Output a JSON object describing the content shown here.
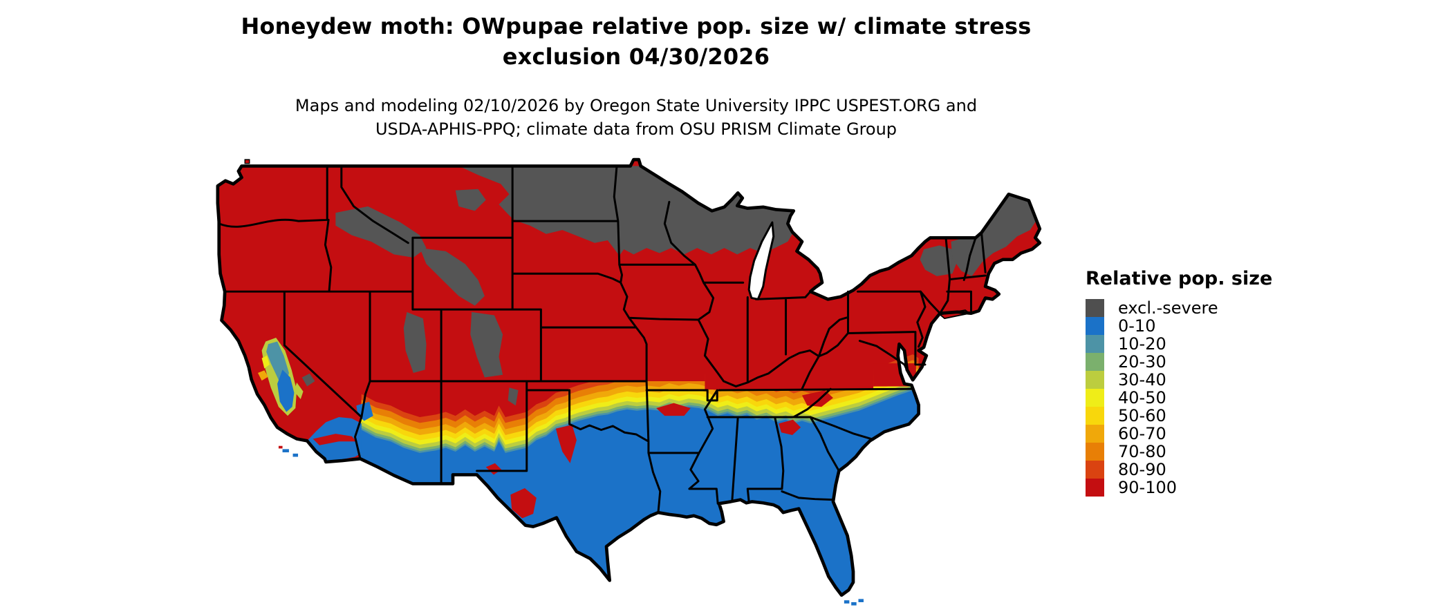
{
  "header": {
    "title_line1": "Honeydew moth: OWpupae relative pop. size w/ climate stress",
    "title_line2": "exclusion 04/30/2026",
    "subtitle_line1": "Maps and modeling 02/10/2026 by Oregon State University IPPC USPEST.ORG and",
    "subtitle_line2": "USDA-APHIS-PPQ; climate data from OSU PRISM Climate Group"
  },
  "legend": {
    "title": "Relative pop. size",
    "items": [
      {
        "label": "excl.-severe",
        "color": "#4F4F4F"
      },
      {
        "label": "0-10",
        "color": "#1B72C8"
      },
      {
        "label": "10-20",
        "color": "#4D93A6"
      },
      {
        "label": "20-30",
        "color": "#7BB06D"
      },
      {
        "label": "30-40",
        "color": "#BCCD3F"
      },
      {
        "label": "40-50",
        "color": "#EFED18"
      },
      {
        "label": "50-60",
        "color": "#F8D70C"
      },
      {
        "label": "60-70",
        "color": "#F0A80A"
      },
      {
        "label": "70-80",
        "color": "#E87F06"
      },
      {
        "label": "80-90",
        "color": "#DA4311"
      },
      {
        "label": "90-100",
        "color": "#C40E11"
      }
    ]
  },
  "map": {
    "colors": {
      "water_background": "#FFFFFF",
      "state_border": "#000000"
    }
  }
}
